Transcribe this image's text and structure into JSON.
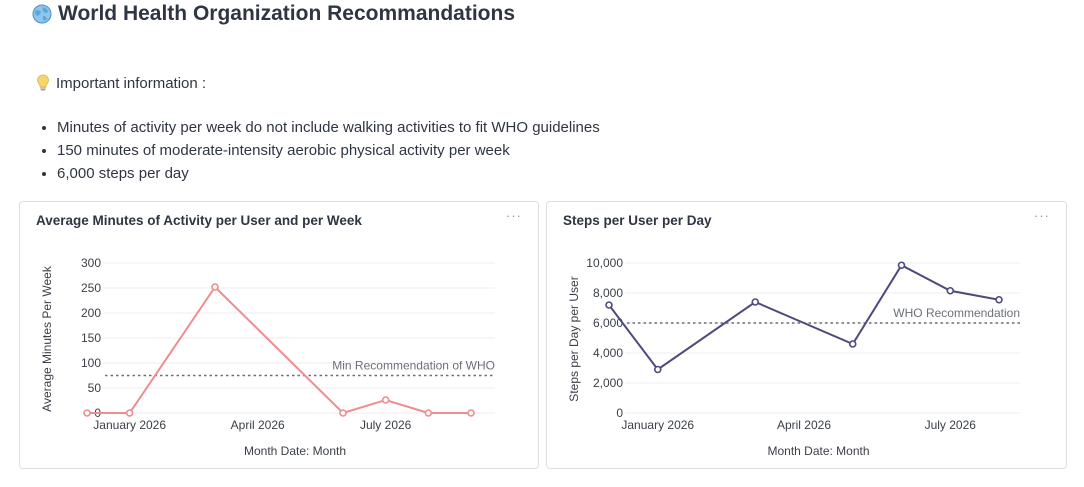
{
  "header": {
    "title": "World Health Organization Recommandations",
    "icon": "globe-icon"
  },
  "info": {
    "label": "Important information :",
    "icon": "lightbulb-icon",
    "bullets": [
      "Minutes of activity per week do not include walking activities to fit WHO guidelines",
      "150 minutes of moderate-intensity aerobic physical activity per week",
      "6,000 steps per day"
    ]
  },
  "cards": [
    {
      "title": "Average Minutes of Activity per User and per Week",
      "more_label": "···"
    },
    {
      "title": "Steps per User per Day",
      "more_label": "···"
    }
  ],
  "chart_data": [
    {
      "type": "line",
      "title": "Average Minutes of Activity per User and per Week",
      "xlabel": "Month Date: Month",
      "ylabel": "Average Minutes Per Week",
      "x": [
        "2025-12",
        "2026-01",
        "2026-03",
        "2026-06",
        "2026-07",
        "2026-08",
        "2026-09"
      ],
      "x_ticks": [
        "January 2026",
        "April 2026",
        "July 2026"
      ],
      "x_tick_values": [
        "2026-01",
        "2026-04",
        "2026-07"
      ],
      "y_ticks": [
        "0",
        "50",
        "100",
        "150",
        "200",
        "250",
        "300"
      ],
      "ylim": [
        0,
        300
      ],
      "series": [
        {
          "values": [
            0,
            0,
            252,
            0,
            26,
            0,
            0
          ],
          "color": "#ef8c8c"
        }
      ],
      "reference_line": {
        "value": 75,
        "label": "Min Recommendation of WHO",
        "color": "#6b6f76"
      },
      "grid": true
    },
    {
      "type": "line",
      "title": "Steps per User per Day",
      "xlabel": "Month Date: Month",
      "ylabel": "Steps per Day per User",
      "x": [
        "2025-12",
        "2026-01",
        "2026-03",
        "2026-05",
        "2026-06",
        "2026-07",
        "2026-08"
      ],
      "x_ticks": [
        "January 2026",
        "April 2026",
        "July 2026"
      ],
      "x_tick_values": [
        "2026-01",
        "2026-04",
        "2026-07"
      ],
      "y_ticks": [
        "0",
        "2,000",
        "4,000",
        "6,000",
        "8,000",
        "10,000"
      ],
      "ylim": [
        0,
        10000
      ],
      "series": [
        {
          "values": [
            7200,
            2900,
            7400,
            4600,
            9850,
            8150,
            7550
          ],
          "color": "#4c4a7e"
        }
      ],
      "reference_line": {
        "value": 6000,
        "label": "WHO Recommendation",
        "color": "#6b6f76"
      },
      "grid": true
    }
  ]
}
